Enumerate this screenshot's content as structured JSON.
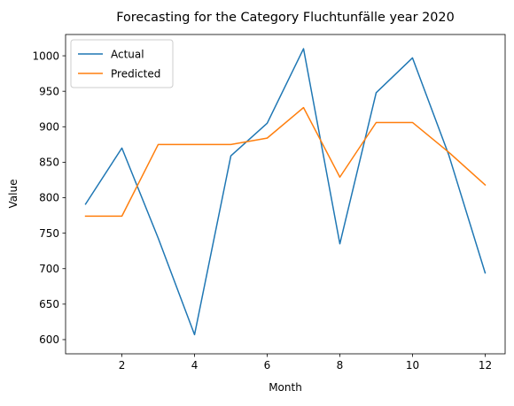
{
  "chart_data": {
    "type": "line",
    "title": "Forecasting for the Category Fluchtunfälle year 2020",
    "xlabel": "Month",
    "ylabel": "Value",
    "x": [
      1,
      2,
      3,
      4,
      5,
      6,
      7,
      8,
      9,
      10,
      11,
      12
    ],
    "xlim": [
      0.45,
      12.55
    ],
    "ylim": [
      580,
      1030
    ],
    "xticks": [
      2,
      4,
      6,
      8,
      10,
      12
    ],
    "yticks": [
      600,
      650,
      700,
      750,
      800,
      850,
      900,
      950,
      1000
    ],
    "grid": false,
    "legend_position": "top-left",
    "series": [
      {
        "name": "Actual",
        "color": "#1f77b4",
        "values": [
          791,
          870,
          743,
          607,
          859,
          905,
          1010,
          735,
          948,
          997,
          860,
          694
        ]
      },
      {
        "name": "Predicted",
        "color": "#ff7f0e",
        "values": [
          774,
          774,
          875,
          875,
          875,
          884,
          927,
          829,
          906,
          906,
          864,
          818
        ]
      }
    ]
  }
}
